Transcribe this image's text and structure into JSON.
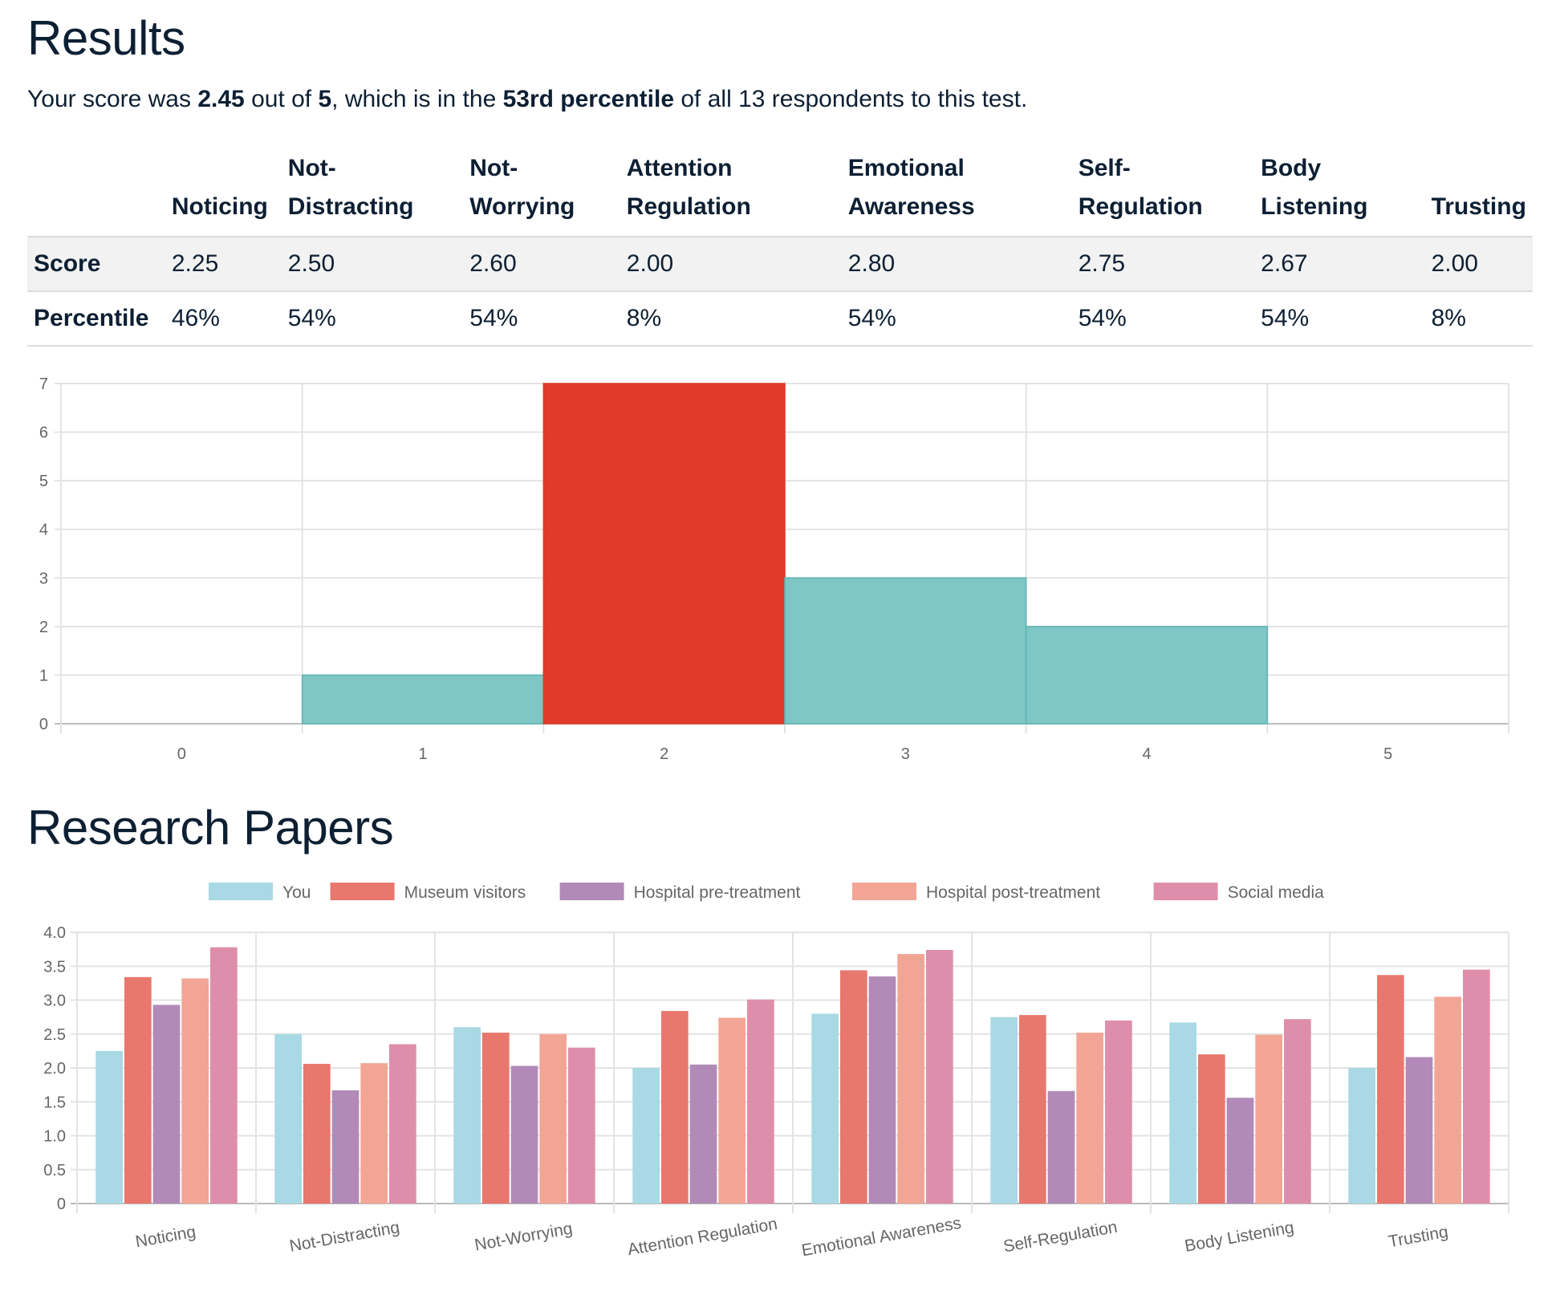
{
  "results": {
    "title": "Results",
    "summary": {
      "t1": "Your score was ",
      "score": "2.45",
      "t2": " out of ",
      "max": "5",
      "t3": ", which is in the ",
      "percentile": "53rd percentile",
      "t4": " of all 13 respondents to this test."
    }
  },
  "table": {
    "headers": [
      "",
      "Noticing",
      "Not-\nDistracting",
      "Not-\nWorrying",
      "Attention\nRegulation",
      "Emotional\nAwareness",
      "Self-\nRegulation",
      "Body\nListening",
      "Trusting"
    ],
    "rows": [
      {
        "label": "Score",
        "values": [
          "2.25",
          "2.50",
          "2.60",
          "2.00",
          "2.80",
          "2.75",
          "2.67",
          "2.00"
        ]
      },
      {
        "label": "Percentile",
        "values": [
          "46%",
          "54%",
          "54%",
          "8%",
          "54%",
          "54%",
          "54%",
          "8%"
        ]
      }
    ]
  },
  "papers": {
    "title": "Research Papers"
  },
  "chart_data": [
    {
      "type": "bar",
      "categories": [
        "0",
        "1",
        "2",
        "3",
        "4",
        "5"
      ],
      "values": [
        0,
        1,
        7,
        3,
        2,
        0
      ],
      "highlight_index": 2,
      "colors": {
        "bar": "#7fc6c6",
        "highlight": "#e03a2a"
      },
      "ylim": [
        0,
        7
      ],
      "yticks": [
        "0",
        "1",
        "2",
        "3",
        "4",
        "5",
        "6",
        "7"
      ],
      "grid": true
    },
    {
      "type": "bar",
      "categories": [
        "Noticing",
        "Not-Distracting",
        "Not-Worrying",
        "Attention Regulation",
        "Emotional Awareness",
        "Self-Regulation",
        "Body Listening",
        "Trusting"
      ],
      "series": [
        {
          "name": "You",
          "color": "#a8d9e4",
          "values": [
            2.25,
            2.5,
            2.6,
            2.0,
            2.8,
            2.75,
            2.67,
            2.0
          ]
        },
        {
          "name": "Museum visitors",
          "color": "#e8776e",
          "values": [
            3.34,
            2.06,
            2.52,
            2.84,
            3.44,
            2.78,
            2.2,
            3.37
          ]
        },
        {
          "name": "Hospital pre-treatment",
          "color": "#b28ab8",
          "values": [
            2.93,
            1.67,
            2.03,
            2.05,
            3.35,
            1.66,
            1.56,
            2.16
          ]
        },
        {
          "name": "Hospital post-treatment",
          "color": "#f3a595",
          "values": [
            3.32,
            2.07,
            2.5,
            2.74,
            3.68,
            2.52,
            2.49,
            3.05
          ]
        },
        {
          "name": "Social media",
          "color": "#de8eaa",
          "values": [
            3.78,
            2.35,
            2.3,
            3.01,
            3.74,
            2.7,
            2.72,
            3.45
          ]
        }
      ],
      "ylim": [
        0,
        4
      ],
      "yticks": [
        "0",
        "0.5",
        "1.0",
        "1.5",
        "2.0",
        "2.5",
        "3.0",
        "3.5",
        "4.0"
      ],
      "legend": "top",
      "grid": true
    }
  ]
}
